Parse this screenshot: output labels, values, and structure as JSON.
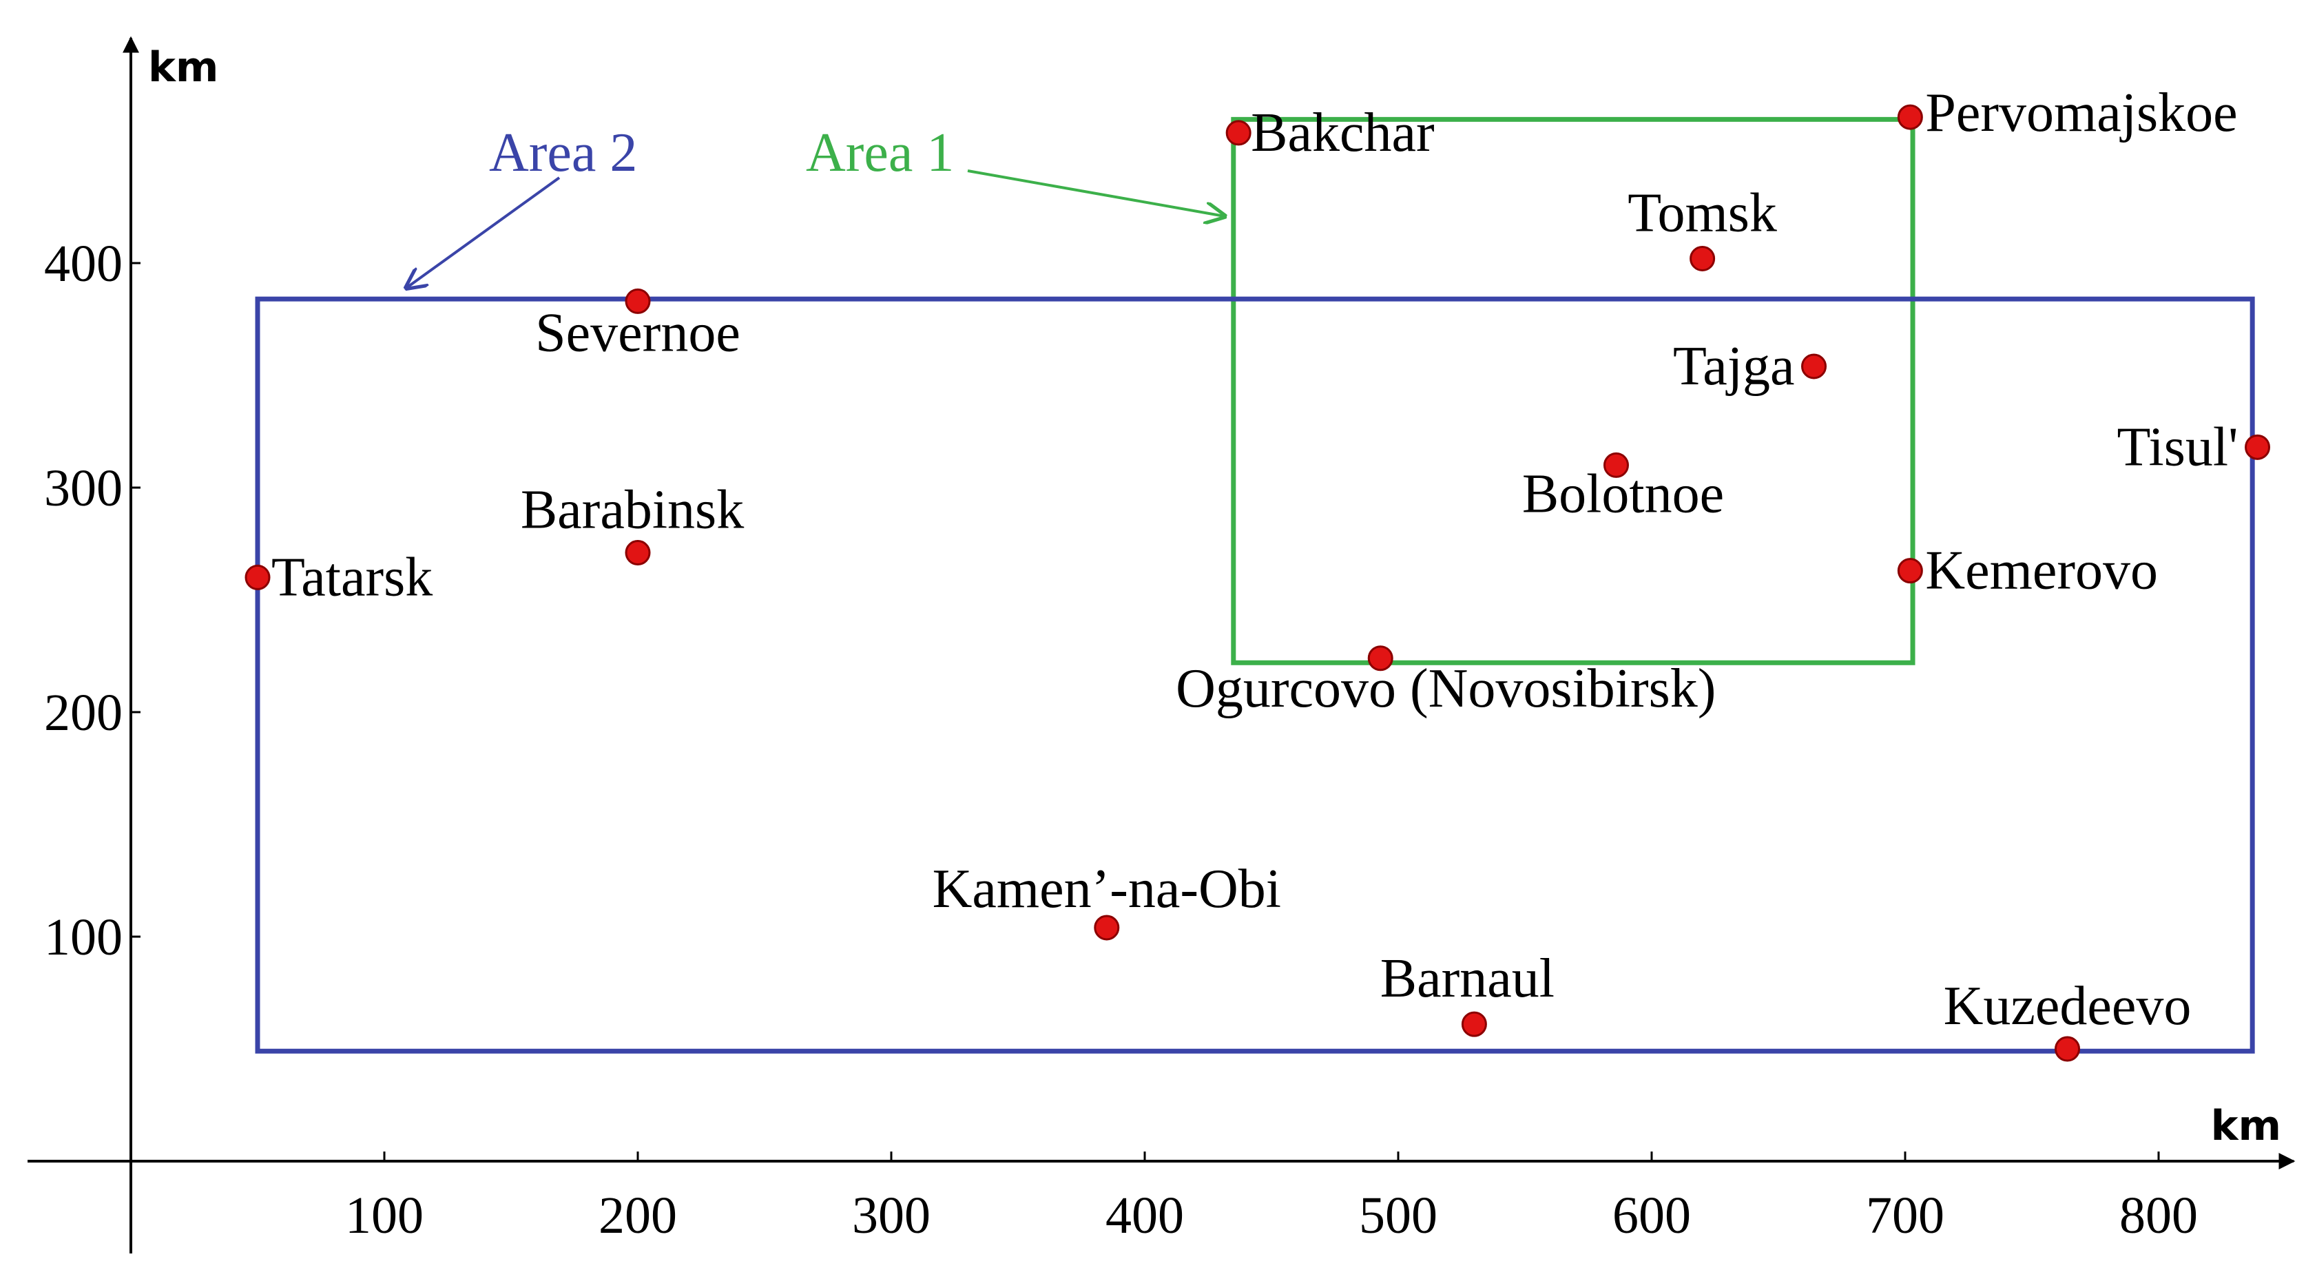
{
  "chart_data": {
    "type": "scatter",
    "xlabel": "km",
    "ylabel": "km",
    "x_ticks": [
      100,
      200,
      300,
      400,
      500,
      600,
      700,
      800
    ],
    "y_ticks": [
      100,
      200,
      300,
      400
    ],
    "grid": false,
    "points": [
      {
        "name": "Bakchar",
        "x": 437,
        "y": 458
      },
      {
        "name": "Pervomajskoe",
        "x": 702,
        "y": 465
      },
      {
        "name": "Tomsk",
        "x": 620,
        "y": 402
      },
      {
        "name": "Severnoe",
        "x": 200,
        "y": 383
      },
      {
        "name": "Tajga",
        "x": 664,
        "y": 354
      },
      {
        "name": "Tisul'",
        "x": 839,
        "y": 318
      },
      {
        "name": "Bolotnoe",
        "x": 586,
        "y": 310
      },
      {
        "name": "Barabinsk",
        "x": 200,
        "y": 271
      },
      {
        "name": "Tatarsk",
        "x": 50,
        "y": 260
      },
      {
        "name": "Kemerovo",
        "x": 702,
        "y": 263
      },
      {
        "name": "Ogurcovo (Novosibirsk)",
        "x": 493,
        "y": 224
      },
      {
        "name": "Kamen’-na-Obi",
        "x": 385,
        "y": 104
      },
      {
        "name": "Barnaul",
        "x": 530,
        "y": 61
      },
      {
        "name": "Kuzedeevo",
        "x": 764,
        "y": 50
      }
    ],
    "regions": [
      {
        "name": "Area 1",
        "x_range": [
          435,
          703
        ],
        "y_range": [
          222,
          464
        ],
        "color": "#3cb04a"
      },
      {
        "name": "Area 2",
        "x_range": [
          50,
          837
        ],
        "y_range": [
          49,
          384
        ],
        "color": "#3a44a8"
      }
    ],
    "marker_color": "#e11414",
    "marker_edge": "#8b0000"
  }
}
